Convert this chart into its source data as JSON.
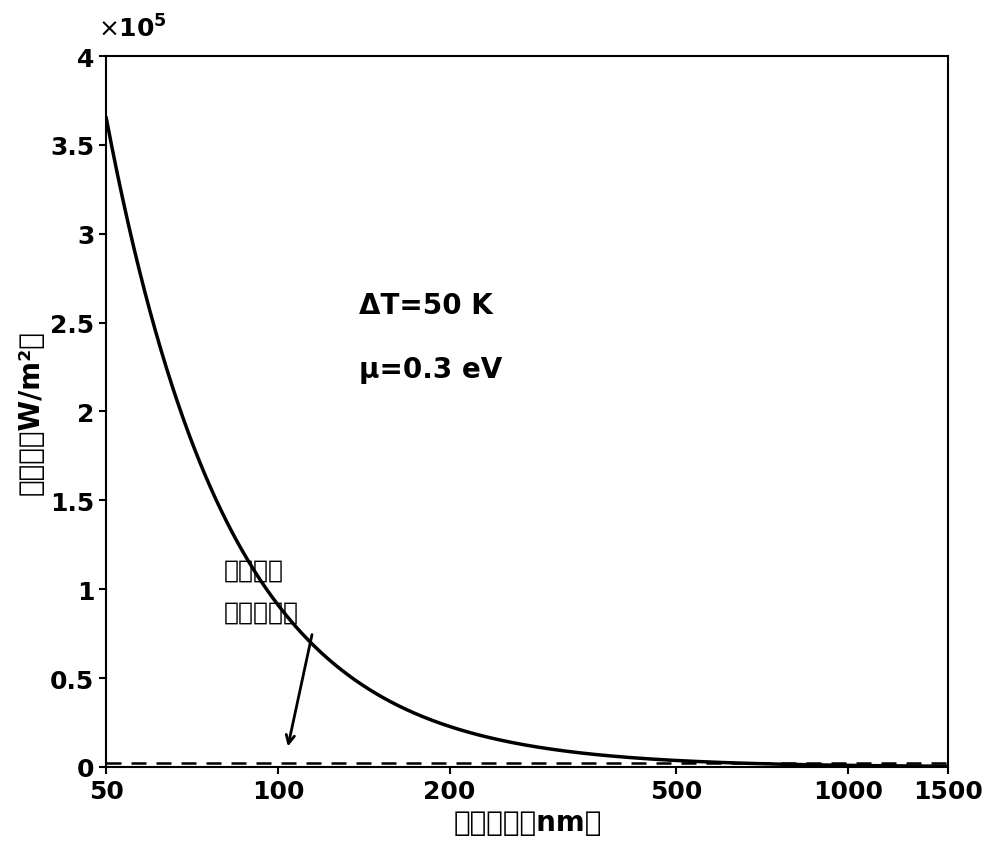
{
  "title": "",
  "xlabel": "近场间距（nm）",
  "ylabel": "传热量（W/m²）",
  "xlim": [
    50,
    1500
  ],
  "ylim": [
    0,
    400000
  ],
  "yticks": [
    0,
    50000,
    100000,
    150000,
    200000,
    250000,
    300000,
    350000,
    400000
  ],
  "ytick_labels": [
    "0",
    "0.5",
    "1",
    "1.5",
    "2",
    "2.5",
    "3",
    "3.5",
    "4"
  ],
  "xticks": [
    50,
    100,
    200,
    500,
    1000,
    1500
  ],
  "xtick_labels": [
    "50",
    "100",
    "200",
    "500",
    "1000",
    "1500"
  ],
  "line_color": "#000000",
  "line_width": 2.5,
  "dashed_line_value": 2000,
  "dashed_line_color": "#000000",
  "dashed_line_style": "--",
  "curve_C": 912500000.0,
  "curve_power": 2.0,
  "annotation_text1": "ΔT=50 K",
  "annotation_text2": "μ=0.3 eV",
  "planck_line1": "普朗克辐",
  "planck_line2": "射定律极限",
  "background_color": "#ffffff",
  "font_size_labels": 20,
  "font_size_ticks": 18,
  "font_size_annotation": 20,
  "font_size_planck": 18,
  "spine_linewidth": 1.5
}
